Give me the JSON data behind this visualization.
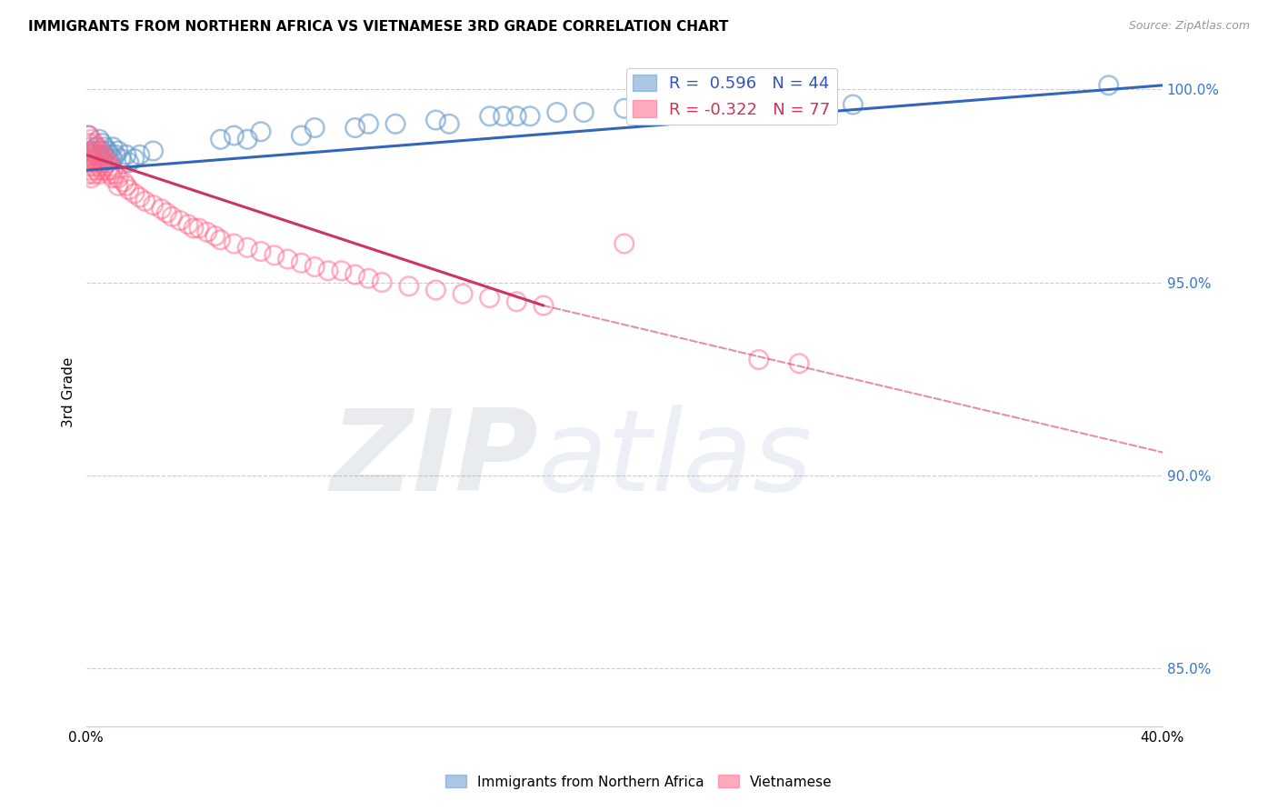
{
  "title": "IMMIGRANTS FROM NORTHERN AFRICA VS VIETNAMESE 3RD GRADE CORRELATION CHART",
  "source": "Source: ZipAtlas.com",
  "ylabel": "3rd Grade",
  "xlim": [
    0.0,
    0.4
  ],
  "ylim": [
    0.835,
    1.008
  ],
  "yticks": [
    0.85,
    0.9,
    0.95,
    1.0
  ],
  "ytick_labels": [
    "85.0%",
    "90.0%",
    "95.0%",
    "100.0%"
  ],
  "xticks": [
    0.0,
    0.05,
    0.1,
    0.15,
    0.2,
    0.25,
    0.3,
    0.35,
    0.4
  ],
  "xtick_labels": [
    "0.0%",
    "",
    "",
    "",
    "",
    "",
    "",
    "",
    "40.0%"
  ],
  "blue_color": "#6699CC",
  "pink_color": "#FF6688",
  "blue_R": 0.596,
  "blue_N": 44,
  "pink_R": -0.322,
  "pink_N": 77,
  "blue_trend": [
    0.0,
    0.979,
    0.4,
    1.001
  ],
  "pink_trend_solid": [
    0.0,
    0.983,
    0.17,
    0.944
  ],
  "pink_trend_dash": [
    0.17,
    0.944,
    0.4,
    0.906
  ],
  "blue_scatter": [
    [
      0.001,
      0.988
    ],
    [
      0.002,
      0.984
    ],
    [
      0.003,
      0.983
    ],
    [
      0.004,
      0.985
    ],
    [
      0.005,
      0.987
    ],
    [
      0.005,
      0.983
    ],
    [
      0.006,
      0.986
    ],
    [
      0.006,
      0.984
    ],
    [
      0.007,
      0.985
    ],
    [
      0.007,
      0.983
    ],
    [
      0.008,
      0.984
    ],
    [
      0.008,
      0.982
    ],
    [
      0.009,
      0.983
    ],
    [
      0.01,
      0.982
    ],
    [
      0.01,
      0.985
    ],
    [
      0.011,
      0.983
    ],
    [
      0.012,
      0.984
    ],
    [
      0.013,
      0.982
    ],
    [
      0.015,
      0.983
    ],
    [
      0.016,
      0.981
    ],
    [
      0.018,
      0.982
    ],
    [
      0.02,
      0.983
    ],
    [
      0.025,
      0.984
    ],
    [
      0.05,
      0.987
    ],
    [
      0.055,
      0.988
    ],
    [
      0.06,
      0.987
    ],
    [
      0.065,
      0.989
    ],
    [
      0.08,
      0.988
    ],
    [
      0.085,
      0.99
    ],
    [
      0.1,
      0.99
    ],
    [
      0.105,
      0.991
    ],
    [
      0.115,
      0.991
    ],
    [
      0.13,
      0.992
    ],
    [
      0.135,
      0.991
    ],
    [
      0.15,
      0.993
    ],
    [
      0.155,
      0.993
    ],
    [
      0.16,
      0.993
    ],
    [
      0.165,
      0.993
    ],
    [
      0.175,
      0.994
    ],
    [
      0.185,
      0.994
    ],
    [
      0.2,
      0.995
    ],
    [
      0.27,
      0.996
    ],
    [
      0.285,
      0.996
    ],
    [
      0.38,
      1.001
    ]
  ],
  "pink_scatter": [
    [
      0.001,
      0.988
    ],
    [
      0.001,
      0.986
    ],
    [
      0.001,
      0.984
    ],
    [
      0.001,
      0.982
    ],
    [
      0.001,
      0.98
    ],
    [
      0.001,
      0.978
    ],
    [
      0.002,
      0.987
    ],
    [
      0.002,
      0.985
    ],
    [
      0.002,
      0.983
    ],
    [
      0.002,
      0.981
    ],
    [
      0.002,
      0.979
    ],
    [
      0.002,
      0.977
    ],
    [
      0.003,
      0.986
    ],
    [
      0.003,
      0.984
    ],
    [
      0.003,
      0.982
    ],
    [
      0.003,
      0.98
    ],
    [
      0.003,
      0.978
    ],
    [
      0.004,
      0.985
    ],
    [
      0.004,
      0.983
    ],
    [
      0.004,
      0.981
    ],
    [
      0.004,
      0.979
    ],
    [
      0.005,
      0.984
    ],
    [
      0.005,
      0.982
    ],
    [
      0.005,
      0.98
    ],
    [
      0.005,
      0.978
    ],
    [
      0.006,
      0.983
    ],
    [
      0.006,
      0.981
    ],
    [
      0.006,
      0.979
    ],
    [
      0.007,
      0.982
    ],
    [
      0.007,
      0.98
    ],
    [
      0.008,
      0.981
    ],
    [
      0.008,
      0.979
    ],
    [
      0.009,
      0.98
    ],
    [
      0.009,
      0.978
    ],
    [
      0.01,
      0.979
    ],
    [
      0.01,
      0.977
    ],
    [
      0.011,
      0.978
    ],
    [
      0.012,
      0.977
    ],
    [
      0.012,
      0.975
    ],
    [
      0.014,
      0.976
    ],
    [
      0.015,
      0.975
    ],
    [
      0.016,
      0.974
    ],
    [
      0.018,
      0.973
    ],
    [
      0.02,
      0.972
    ],
    [
      0.022,
      0.971
    ],
    [
      0.025,
      0.97
    ],
    [
      0.028,
      0.969
    ],
    [
      0.03,
      0.968
    ],
    [
      0.032,
      0.967
    ],
    [
      0.035,
      0.966
    ],
    [
      0.038,
      0.965
    ],
    [
      0.04,
      0.964
    ],
    [
      0.042,
      0.964
    ],
    [
      0.045,
      0.963
    ],
    [
      0.048,
      0.962
    ],
    [
      0.05,
      0.961
    ],
    [
      0.055,
      0.96
    ],
    [
      0.06,
      0.959
    ],
    [
      0.065,
      0.958
    ],
    [
      0.07,
      0.957
    ],
    [
      0.075,
      0.956
    ],
    [
      0.08,
      0.955
    ],
    [
      0.085,
      0.954
    ],
    [
      0.09,
      0.953
    ],
    [
      0.095,
      0.953
    ],
    [
      0.1,
      0.952
    ],
    [
      0.105,
      0.951
    ],
    [
      0.11,
      0.95
    ],
    [
      0.12,
      0.949
    ],
    [
      0.13,
      0.948
    ],
    [
      0.14,
      0.947
    ],
    [
      0.15,
      0.946
    ],
    [
      0.16,
      0.945
    ],
    [
      0.17,
      0.944
    ],
    [
      0.2,
      0.96
    ],
    [
      0.25,
      0.93
    ],
    [
      0.265,
      0.929
    ]
  ],
  "watermark_zip": "ZIP",
  "watermark_atlas": "atlas"
}
